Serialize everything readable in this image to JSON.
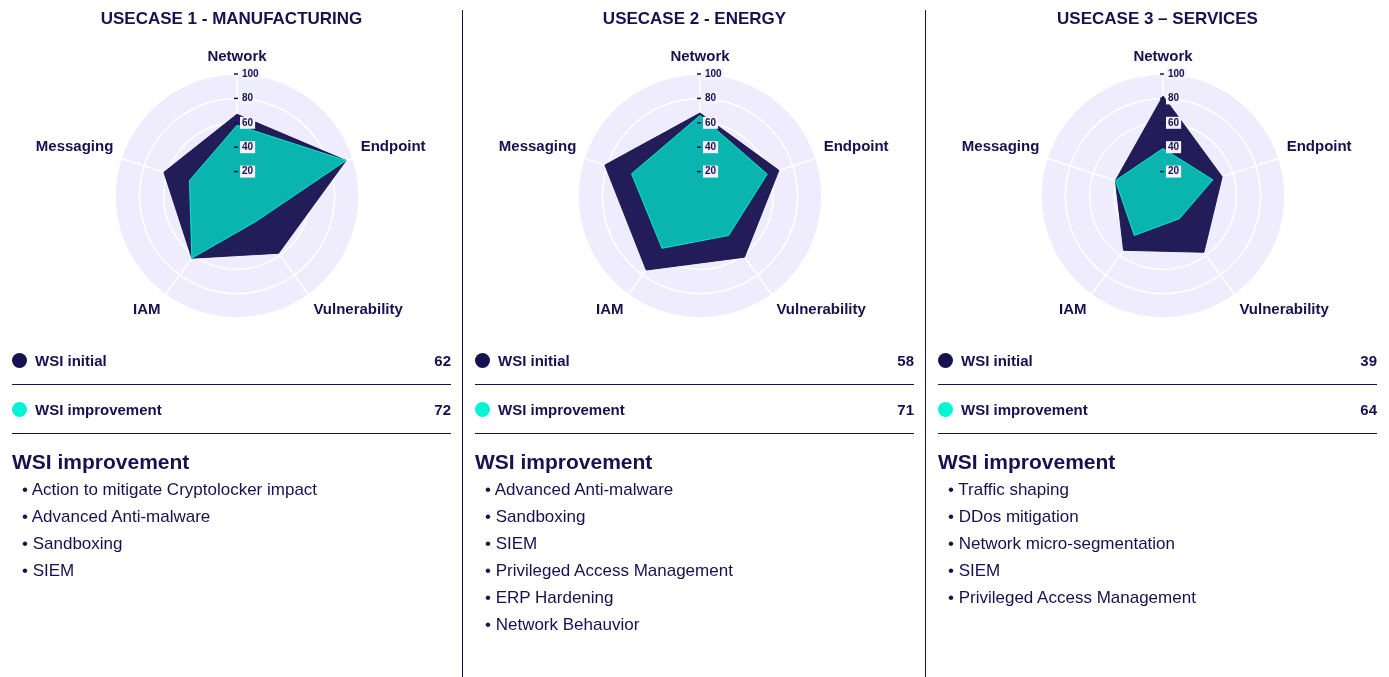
{
  "chart_data": [
    {
      "type": "radar",
      "title": "USECASE 1 - MANUFACTURING",
      "subtitle": "WSI improvement",
      "categories": [
        "Network",
        "Endpoint",
        "Vulnerability",
        "IAM",
        "Messaging"
      ],
      "ylim": [
        0,
        100
      ],
      "yticks": [
        20,
        40,
        60,
        80,
        100
      ],
      "grid": true,
      "legend": "bottom",
      "marker": "none",
      "series": [
        {
          "name": "WSI initial",
          "color": "#16114f",
          "values": [
            67,
            94,
            58,
            63,
            63
          ]
        },
        {
          "name": "WSI improvement",
          "color": "#00f5d4",
          "values": [
            58,
            94,
            26,
            63,
            41
          ]
        }
      ],
      "annotations": [
        "62",
        "72",
        "• Action to mitigate Cryptolocker impact",
        "• Advanced Anti-malware",
        "• Sandboxing",
        "• SIEM"
      ]
    },
    {
      "type": "radar",
      "title": "USECASE 2 - ENERGY",
      "subtitle": "WSI improvement",
      "categories": [
        "Network",
        "Endpoint",
        "Vulnerability",
        "IAM",
        "Messaging"
      ],
      "ylim": [
        0,
        100
      ],
      "yticks": [
        20,
        40,
        60,
        80,
        100
      ],
      "grid": true,
      "legend": "bottom",
      "marker": "none",
      "series": [
        {
          "name": "WSI initial",
          "color": "#16114f",
          "values": [
            68,
            68,
            62,
            75,
            82
          ]
        },
        {
          "name": "WSI improvement",
          "color": "#00f5d4",
          "values": [
            66,
            58,
            40,
            53,
            59
          ]
        }
      ],
      "annotations": [
        "58",
        "71",
        "• Advanced Anti-malware",
        "• Sandboxing",
        "• SIEM",
        "• Privileged Access Management",
        "• ERP Hardening",
        "• Network Behauvior"
      ]
    },
    {
      "type": "radar",
      "title": "USECASE 3 – SERVICES",
      "subtitle": "WSI improvement",
      "categories": [
        "Network",
        "Endpoint",
        "Vulnerability",
        "IAM",
        "Messaging"
      ],
      "ylim": [
        0,
        100
      ],
      "yticks": [
        20,
        40,
        60,
        80,
        100
      ],
      "grid": true,
      "legend": "bottom",
      "marker": "none",
      "series": [
        {
          "name": "WSI initial",
          "color": "#16114f",
          "values": [
            82,
            51,
            57,
            55,
            41
          ]
        },
        {
          "name": "WSI improvement",
          "color": "#00f5d4",
          "values": [
            39,
            43,
            23,
            40,
            41
          ]
        }
      ],
      "annotations": [
        "39",
        "64",
        "• Traffic shaping",
        "• DDos mitigation",
        "• Network micro-segmentation",
        "• SIEM",
        "• Privileged Access Management"
      ]
    }
  ]
}
